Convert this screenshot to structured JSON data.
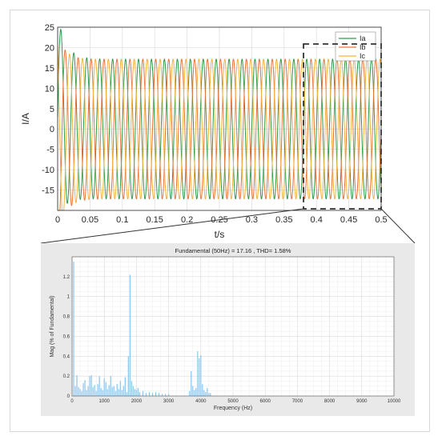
{
  "chart_data": [
    {
      "type": "line",
      "xlabel": "t/s",
      "ylabel": "I/A",
      "xlim": [
        0,
        0.5
      ],
      "ylim": [
        -20,
        25
      ],
      "xticks": [
        "0",
        "0.05",
        "0.1",
        "0.15",
        "0.2",
        "0.25",
        "0.3",
        "0.35",
        "0.4",
        "0.45",
        "0.5"
      ],
      "yticks": [
        "-15",
        "-10",
        "-5",
        "0",
        "5",
        "10",
        "15",
        "20",
        "25"
      ],
      "grid": true,
      "legend_position": "top-right",
      "fundamental_hz": 50,
      "steady_amplitude": 17.16,
      "series": [
        {
          "name": "Ia",
          "color": "#2e9a4a",
          "phase_deg": 0
        },
        {
          "name": "Ib",
          "color": "#e8743b",
          "phase_deg": -120
        },
        {
          "name": "Ic",
          "color": "#f2b33d",
          "phase_deg": 120
        }
      ],
      "zoom_box_x": [
        0.38,
        0.5
      ]
    },
    {
      "type": "bar",
      "title": "Fundamental (50Hz) = 17.16 , THD= 1.58%",
      "xlabel": "Frequency (Hz)",
      "ylabel": "Mag (% of Fundamental)",
      "xlim": [
        0,
        10000
      ],
      "ylim": [
        0,
        1.4
      ],
      "xticks": [
        "0",
        "1000",
        "2000",
        "3000",
        "4000",
        "5000",
        "6000",
        "7000",
        "8000",
        "9000",
        "10000"
      ],
      "yticks": [
        "0",
        "0.2",
        "0.4",
        "0.6",
        "0.8",
        "1",
        "1.2"
      ],
      "grid": true,
      "bar_color": "#8fc3e8",
      "x": [
        50,
        100,
        150,
        200,
        250,
        300,
        350,
        400,
        450,
        500,
        550,
        600,
        650,
        700,
        750,
        800,
        850,
        900,
        950,
        1000,
        1050,
        1100,
        1150,
        1200,
        1250,
        1300,
        1350,
        1400,
        1450,
        1500,
        1550,
        1600,
        1650,
        1700,
        1750,
        1800,
        1850,
        1900,
        1950,
        2000,
        2050,
        2100,
        2200,
        2300,
        2400,
        2500,
        2600,
        2700,
        2800,
        2900,
        3000,
        3650,
        3700,
        3750,
        3800,
        3850,
        3900,
        3950,
        4000,
        4050,
        4100,
        4150,
        4200,
        4250,
        4300
      ],
      "values": [
        1.35,
        0.1,
        0.21,
        0.09,
        0.07,
        0.05,
        0.13,
        0.16,
        0.06,
        0.1,
        0.2,
        0.21,
        0.09,
        0.11,
        0.05,
        0.12,
        0.2,
        0.08,
        0.06,
        0.18,
        0.14,
        0.07,
        0.11,
        0.2,
        0.09,
        0.1,
        0.05,
        0.12,
        0.07,
        0.15,
        0.06,
        0.1,
        0.19,
        0.04,
        0.4,
        1.22,
        0.15,
        0.1,
        0.07,
        0.06,
        0.08,
        0.04,
        0.05,
        0.03,
        0.04,
        0.03,
        0.04,
        0.03,
        0.02,
        0.02,
        0.02,
        0.05,
        0.25,
        0.1,
        0.06,
        0.08,
        0.45,
        0.38,
        0.41,
        0.12,
        0.06,
        0.04,
        0.08,
        0.03,
        0.03
      ]
    }
  ]
}
